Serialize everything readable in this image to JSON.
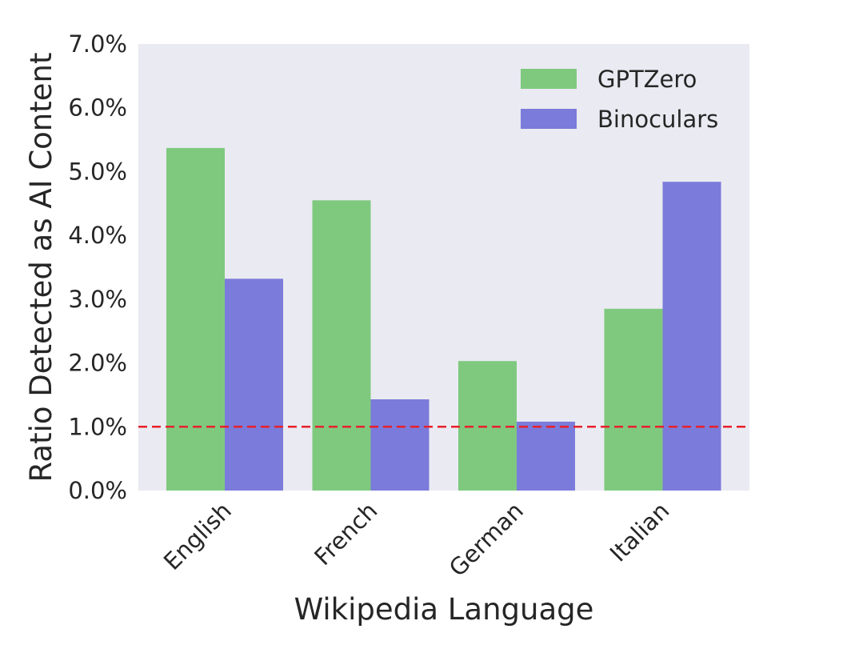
{
  "chart_data": {
    "type": "bar",
    "title": "",
    "xlabel": "Wikipedia Language",
    "ylabel": "Ratio Detected as AI Content",
    "categories": [
      "English",
      "French",
      "German",
      "Italian"
    ],
    "series": [
      {
        "name": "GPTZero",
        "values": [
          5.37,
          4.55,
          2.03,
          2.85
        ],
        "color": "#7fc97f"
      },
      {
        "name": "Binoculars",
        "values": [
          3.32,
          1.43,
          1.08,
          4.84
        ],
        "color": "#7b7bdb"
      }
    ],
    "ylim": [
      0,
      7.0
    ],
    "y_ticks": [
      "0.0%",
      "1.0%",
      "2.0%",
      "3.0%",
      "4.0%",
      "5.0%",
      "6.0%",
      "7.0%"
    ],
    "y_tick_values": [
      0,
      1,
      2,
      3,
      4,
      5,
      6,
      7
    ],
    "reference_line": {
      "value": 1.0,
      "color": "#e8202a",
      "style": "dashed"
    },
    "plot_background": "#eaeaf2",
    "grid": false,
    "legend_position": "top-right"
  }
}
